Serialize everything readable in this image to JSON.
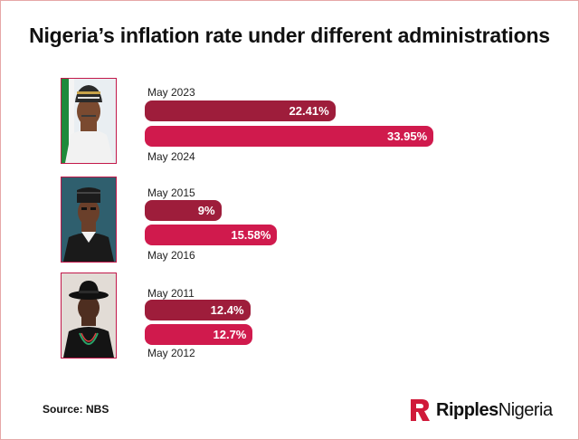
{
  "title": "Nigeria’s inflation rate under different administrations",
  "source": "Source: NBS",
  "logo": {
    "bold": "Ripples",
    "regular": "Nigeria"
  },
  "colors": {
    "start_bar": "#9e1d3b",
    "end_bar": "#d01a4d",
    "frame": "#e6a7a7"
  },
  "chart_data": {
    "type": "bar",
    "orientation": "horizontal",
    "title": "Nigeria’s inflation rate under different administrations",
    "xlim": [
      0,
      40
    ],
    "groups": [
      {
        "portrait": "man-with-cap-portrait",
        "bars": [
          {
            "label": "May 2023",
            "value": 22.41,
            "display": "22.41%"
          },
          {
            "label": "May 2024",
            "value": 33.95,
            "display": "33.95%"
          }
        ]
      },
      {
        "portrait": "man-with-cap-portrait",
        "bars": [
          {
            "label": "May 2015",
            "value": 9,
            "display": "9%"
          },
          {
            "label": "May 2016",
            "value": 15.58,
            "display": "15.58%"
          }
        ]
      },
      {
        "portrait": "man-with-hat-portrait",
        "bars": [
          {
            "label": "May 2011",
            "value": 12.4,
            "display": "12.4%"
          },
          {
            "label": "May 2012",
            "value": 12.7,
            "display": "12.7%"
          }
        ]
      }
    ]
  }
}
